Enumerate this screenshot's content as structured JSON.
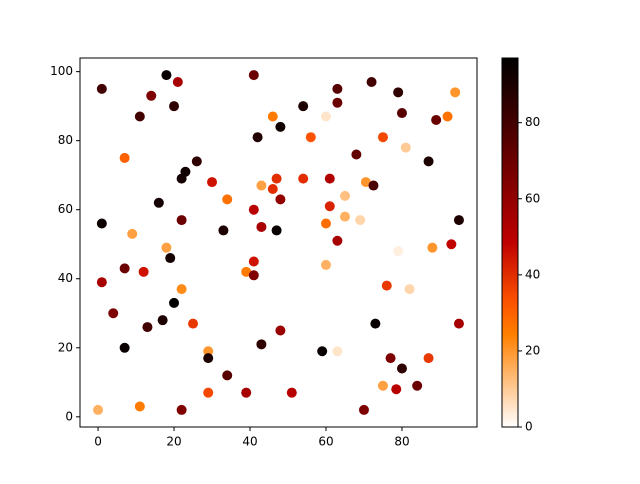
{
  "chart_data": {
    "type": "scatter",
    "colormap": "gist_heat_r",
    "x": [
      0,
      1,
      18,
      21,
      41,
      14,
      20,
      11,
      54,
      46,
      60,
      63,
      63,
      72,
      79,
      80,
      94,
      92,
      89,
      7,
      42,
      48,
      56,
      75,
      81,
      68,
      87,
      26,
      23,
      22,
      30,
      47,
      54,
      61,
      43,
      46,
      70.5,
      72.5,
      34,
      48,
      65,
      61,
      16,
      1,
      41,
      22,
      43,
      47,
      33,
      9,
      60,
      65,
      69,
      95,
      63,
      93,
      88,
      79,
      18,
      19,
      41,
      39,
      41,
      7,
      12,
      1,
      60,
      22,
      76,
      82,
      20,
      4,
      17,
      13,
      25,
      48,
      73,
      95,
      7,
      43,
      29,
      29,
      59,
      63,
      77,
      87,
      80,
      34,
      75,
      84,
      78.5,
      29,
      39,
      51,
      11,
      22,
      70
    ],
    "values": [
      2,
      95,
      99,
      97,
      99,
      93,
      90,
      87,
      90,
      87,
      87,
      95,
      91,
      97,
      94,
      88,
      94,
      87,
      86,
      75,
      81,
      84,
      81,
      81,
      78,
      76,
      74,
      74,
      71,
      69,
      68,
      69,
      69,
      69,
      67,
      66,
      68,
      67,
      63,
      63,
      64,
      61,
      62,
      56,
      60,
      57,
      55,
      54,
      54,
      53,
      56,
      58,
      57,
      57,
      51,
      50,
      49,
      48,
      49,
      46,
      45,
      42,
      41,
      43,
      42,
      39,
      44,
      37,
      38,
      37,
      33,
      30,
      28,
      26,
      27,
      25,
      27,
      27,
      20,
      21,
      19,
      17,
      19,
      19,
      17,
      17,
      14,
      12,
      9,
      9,
      8,
      7,
      7,
      7,
      3,
      2,
      2
    ],
    "colors": [
      15,
      80,
      95,
      55,
      70,
      65,
      85,
      80,
      90,
      25,
      5,
      75,
      70,
      80,
      85,
      75,
      20,
      27,
      70,
      30,
      88,
      93,
      33,
      35,
      10,
      72,
      90,
      85,
      93,
      92,
      45,
      40,
      40,
      52,
      18,
      40,
      20,
      78,
      27,
      60,
      12,
      42,
      92,
      94,
      50,
      70,
      55,
      95,
      90,
      18,
      28,
      15,
      8,
      90,
      55,
      48,
      20,
      3,
      18,
      92,
      45,
      25,
      65,
      70,
      45,
      55,
      15,
      22,
      38,
      8,
      97,
      65,
      90,
      80,
      38,
      58,
      95,
      55,
      95,
      85,
      20,
      90,
      95,
      5,
      65,
      38,
      85,
      75,
      18,
      70,
      50,
      35,
      55,
      50,
      25,
      65,
      65
    ],
    "xlim": [
      -4.75,
      99.75
    ],
    "ylim": [
      -2.95,
      103.95
    ],
    "clim": [
      0,
      97
    ],
    "xticks": [
      0,
      20,
      40,
      60,
      80
    ],
    "yticks": [
      0,
      20,
      40,
      60,
      80,
      100
    ],
    "cticks": [
      0,
      20,
      40,
      60,
      80
    ]
  }
}
